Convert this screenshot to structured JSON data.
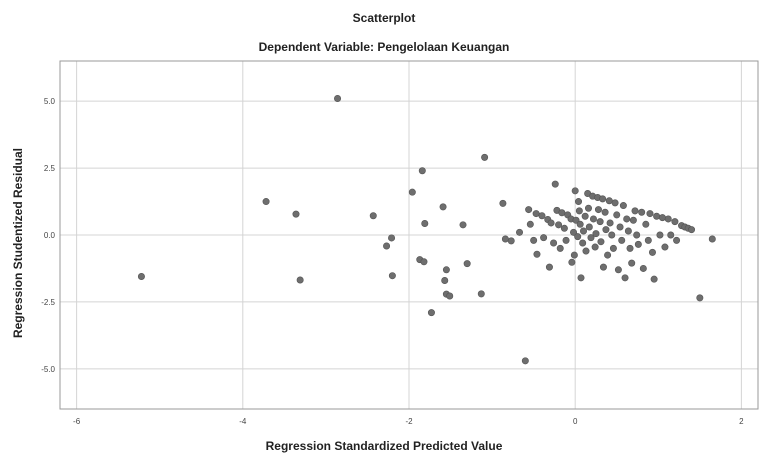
{
  "chart_data": {
    "type": "scatter",
    "title": "Scatterplot",
    "subtitle": "Dependent Variable: Pengelolaan Keuangan",
    "xlabel": "Regression Standardized Predicted Value",
    "ylabel": "Regression Studentized Residual",
    "xlim": [
      -6.2,
      2.2
    ],
    "ylim": [
      -6.5,
      6.5
    ],
    "xticks": [
      -6,
      -4,
      -2,
      0,
      2
    ],
    "xtick_labels": [
      "-6",
      "-4",
      "-2",
      "0",
      "2"
    ],
    "yticks": [
      -5.0,
      -2.5,
      0.0,
      2.5,
      5.0
    ],
    "ytick_labels": [
      "-5.0",
      "-2.5",
      "0.0",
      "2.5",
      "5.0"
    ],
    "grid": true,
    "point_color": "#6e6e6e",
    "points": [
      [
        -5.22,
        -1.55
      ],
      [
        -3.72,
        1.25
      ],
      [
        -3.36,
        0.78
      ],
      [
        -3.31,
        -1.68
      ],
      [
        -2.86,
        5.1
      ],
      [
        -2.43,
        0.72
      ],
      [
        -2.27,
        -0.41
      ],
      [
        -2.21,
        -0.11
      ],
      [
        -2.2,
        -1.52
      ],
      [
        -1.96,
        1.6
      ],
      [
        -1.87,
        -0.92
      ],
      [
        -1.84,
        2.4
      ],
      [
        -1.82,
        -1.0
      ],
      [
        -1.81,
        0.43
      ],
      [
        -1.73,
        -2.9
      ],
      [
        -1.59,
        1.05
      ],
      [
        -1.57,
        -1.7
      ],
      [
        -1.55,
        -1.3
      ],
      [
        -1.55,
        -2.21
      ],
      [
        -1.51,
        -2.28
      ],
      [
        -1.35,
        0.38
      ],
      [
        -1.3,
        -1.07
      ],
      [
        -1.13,
        -2.2
      ],
      [
        -1.09,
        2.9
      ],
      [
        -0.87,
        1.18
      ],
      [
        -0.84,
        -0.15
      ],
      [
        -0.77,
        -0.22
      ],
      [
        -0.67,
        0.1
      ],
      [
        -0.6,
        -4.7
      ],
      [
        -0.56,
        0.95
      ],
      [
        -0.54,
        0.4
      ],
      [
        -0.5,
        -0.2
      ],
      [
        -0.47,
        0.8
      ],
      [
        -0.46,
        -0.72
      ],
      [
        -0.4,
        0.72
      ],
      [
        -0.38,
        -0.1
      ],
      [
        -0.33,
        0.58
      ],
      [
        -0.31,
        -1.2
      ],
      [
        -0.29,
        0.45
      ],
      [
        -0.26,
        -0.3
      ],
      [
        -0.24,
        1.9
      ],
      [
        -0.22,
        0.92
      ],
      [
        -0.2,
        0.38
      ],
      [
        -0.18,
        -0.5
      ],
      [
        -0.16,
        0.83
      ],
      [
        -0.13,
        0.25
      ],
      [
        -0.11,
        -0.2
      ],
      [
        -0.09,
        0.75
      ],
      [
        -0.05,
        0.6
      ],
      [
        -0.04,
        -1.02
      ],
      [
        -0.02,
        0.1
      ],
      [
        -0.01,
        -0.75
      ],
      [
        0.0,
        1.65
      ],
      [
        0.01,
        0.55
      ],
      [
        0.03,
        -0.06
      ],
      [
        0.04,
        1.25
      ],
      [
        0.05,
        0.9
      ],
      [
        0.06,
        0.4
      ],
      [
        0.07,
        -1.6
      ],
      [
        0.09,
        -0.3
      ],
      [
        0.1,
        0.15
      ],
      [
        0.12,
        0.7
      ],
      [
        0.13,
        -0.6
      ],
      [
        0.15,
        1.55
      ],
      [
        0.16,
        1.0
      ],
      [
        0.17,
        0.3
      ],
      [
        0.19,
        -0.1
      ],
      [
        0.21,
        1.45
      ],
      [
        0.22,
        0.6
      ],
      [
        0.24,
        -0.45
      ],
      [
        0.25,
        0.05
      ],
      [
        0.27,
        1.4
      ],
      [
        0.28,
        0.95
      ],
      [
        0.3,
        0.5
      ],
      [
        0.31,
        -0.25
      ],
      [
        0.33,
        1.35
      ],
      [
        0.34,
        -1.2
      ],
      [
        0.36,
        0.85
      ],
      [
        0.37,
        0.2
      ],
      [
        0.39,
        -0.75
      ],
      [
        0.41,
        1.28
      ],
      [
        0.42,
        0.45
      ],
      [
        0.44,
        0.0
      ],
      [
        0.46,
        -0.5
      ],
      [
        0.48,
        1.2
      ],
      [
        0.5,
        0.75
      ],
      [
        0.52,
        -1.3
      ],
      [
        0.54,
        0.3
      ],
      [
        0.56,
        -0.2
      ],
      [
        0.58,
        1.1
      ],
      [
        0.6,
        -1.6
      ],
      [
        0.62,
        0.6
      ],
      [
        0.64,
        0.15
      ],
      [
        0.66,
        -0.5
      ],
      [
        0.68,
        -1.05
      ],
      [
        0.7,
        0.55
      ],
      [
        0.72,
        0.9
      ],
      [
        0.74,
        0.0
      ],
      [
        0.76,
        -0.35
      ],
      [
        0.8,
        0.85
      ],
      [
        0.82,
        -1.25
      ],
      [
        0.85,
        0.4
      ],
      [
        0.88,
        -0.2
      ],
      [
        0.9,
        0.8
      ],
      [
        0.93,
        -0.65
      ],
      [
        0.95,
        -1.65
      ],
      [
        0.98,
        0.7
      ],
      [
        1.02,
        0.0
      ],
      [
        1.05,
        0.65
      ],
      [
        1.08,
        -0.45
      ],
      [
        1.12,
        0.6
      ],
      [
        1.15,
        0.0
      ],
      [
        1.2,
        0.5
      ],
      [
        1.22,
        -0.2
      ],
      [
        1.28,
        0.35
      ],
      [
        1.32,
        0.3
      ],
      [
        1.36,
        0.25
      ],
      [
        1.4,
        0.2
      ],
      [
        1.5,
        -2.35
      ],
      [
        1.65,
        -0.15
      ]
    ]
  }
}
